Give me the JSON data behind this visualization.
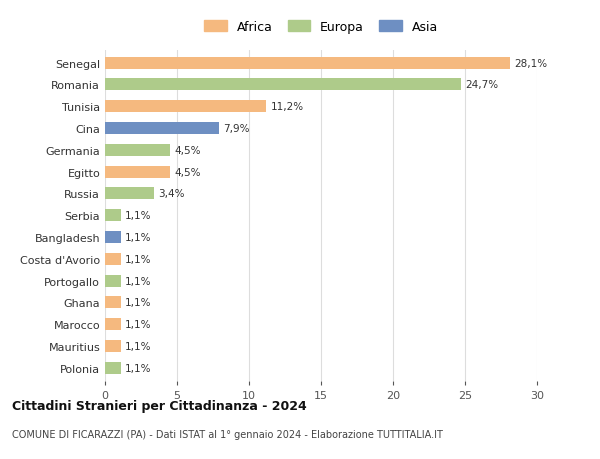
{
  "categories": [
    "Senegal",
    "Romania",
    "Tunisia",
    "Cina",
    "Germania",
    "Egitto",
    "Russia",
    "Serbia",
    "Bangladesh",
    "Costa d'Avorio",
    "Portogallo",
    "Ghana",
    "Marocco",
    "Mauritius",
    "Polonia"
  ],
  "values": [
    28.1,
    24.7,
    11.2,
    7.9,
    4.5,
    4.5,
    3.4,
    1.1,
    1.1,
    1.1,
    1.1,
    1.1,
    1.1,
    1.1,
    1.1
  ],
  "labels": [
    "28,1%",
    "24,7%",
    "11,2%",
    "7,9%",
    "4,5%",
    "4,5%",
    "3,4%",
    "1,1%",
    "1,1%",
    "1,1%",
    "1,1%",
    "1,1%",
    "1,1%",
    "1,1%",
    "1,1%"
  ],
  "colors": [
    "#F5B97F",
    "#AECB8A",
    "#F5B97F",
    "#6E8FC2",
    "#AECB8A",
    "#F5B97F",
    "#AECB8A",
    "#AECB8A",
    "#6E8FC2",
    "#F5B97F",
    "#AECB8A",
    "#F5B97F",
    "#F5B97F",
    "#F5B97F",
    "#AECB8A"
  ],
  "legend_labels": [
    "Africa",
    "Europa",
    "Asia"
  ],
  "legend_colors": [
    "#F5B97F",
    "#AECB8A",
    "#6E8FC2"
  ],
  "title": "Cittadini Stranieri per Cittadinanza - 2024",
  "subtitle": "COMUNE DI FICARAZZI (PA) - Dati ISTAT al 1° gennaio 2024 - Elaborazione TUTTITALIA.IT",
  "xlim": [
    0,
    30
  ],
  "xticks": [
    0,
    5,
    10,
    15,
    20,
    25,
    30
  ],
  "background_color": "#ffffff",
  "grid_color": "#dddddd"
}
